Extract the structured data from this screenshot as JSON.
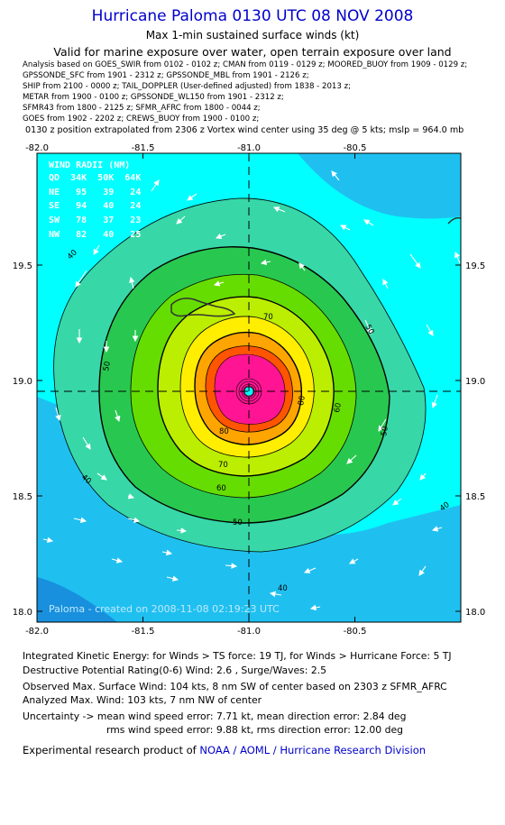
{
  "title": "Hurricane Paloma 0130 UTC 08 NOV 2008",
  "subtitle": "Max 1-min sustained surface winds (kt)",
  "valid_line": "Valid for marine exposure over water, open terrain exposure over land",
  "sources": [
    "Analysis based on  GOES_SWIR from 0102 - 0102 z;  CMAN from 0119 - 0129 z;  MOORED_BUOY from 1909 - 0129 z;",
    "GPSSONDE_SFC from 1901 - 2312 z;  GPSSONDE_MBL from 1901 - 2126 z;",
    "SHIP from 2100 - 0000 z;  TAIL_DOPPLER (User-defined adjusted) from 1838 - 2013 z;",
    "METAR from 1900 - 0100 z;  GPSSONDE_WL150 from 1901 - 2312 z;",
    "SFMR43 from 1800 - 2125 z;  SFMR_AFRC from 1800 - 0044 z;",
    "GOES from 1902 - 2202 z;  CREWS_BUOY from 1900 - 0100 z;"
  ],
  "extrapolation": "0130 z position extrapolated from 2306 z Vortex wind center using 35 deg @ 5 kts; mslp = 964.0 mb",
  "map": {
    "x_ticks": [
      "-82.0",
      "-81.5",
      "-81.0",
      "-80.5"
    ],
    "y_ticks": [
      "19.5",
      "19.0",
      "18.5",
      "18.0"
    ],
    "contour_labels": [
      "40",
      "40",
      "40",
      "40",
      "50",
      "50",
      "50",
      "50",
      "60",
      "60",
      "70",
      "70",
      "80",
      "80"
    ],
    "credit": "Paloma - created on 2008-11-08 02:19:23 UTC",
    "colors": {
      "ocean": "#00ffff",
      "under40": "#1fc0f0",
      "c40": "#37d7a8",
      "c50": "#28c850",
      "c60": "#66dd00",
      "c70": "#bbee00",
      "c80": "#ffee00",
      "c90": "#ffa500",
      "c100": "#ff5500",
      "core": "#ff1493",
      "land": "#333333"
    }
  },
  "wind_radii": {
    "header": "WIND RADII (NM)",
    "columns": "QD  34K  50K  64K",
    "rows": [
      "NE   95   39   24",
      "SE   94   40   24",
      "SW   78   37   23",
      "NW   82   40   25"
    ]
  },
  "footer": {
    "ike": "Integrated Kinetic Energy:  for Winds > TS force: 19 TJ,  for Winds > Hurricane Force: 5 TJ",
    "dpr": "Destructive Potential Rating(0-6)   Wind: 2.6 , Surge/Waves: 2.5",
    "observed": "Observed Max. Surface Wind: 104 kts, 8 nm SW of center based on 2303 z SFMR_AFRC",
    "analyzed": "Analyzed Max. Wind: 103 kts, 7 nm NW of center",
    "uncertainty1": "Uncertainty -> mean wind speed error: 7.71 kt,   mean direction error: 2.84 deg",
    "uncertainty2": "rms wind speed error: 9.88 kt,   rms direction error: 12.00 deg",
    "credit_prefix": "Experimental research product of",
    "credit_link": "NOAA / AOML / Hurricane Research Division"
  }
}
